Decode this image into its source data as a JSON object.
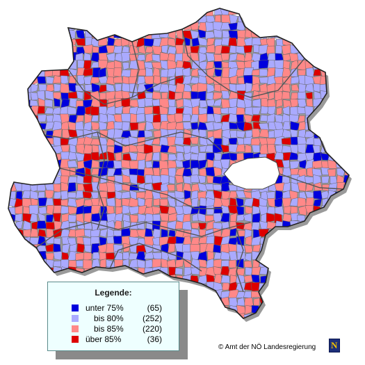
{
  "legend": {
    "title": "Legende:",
    "items": [
      {
        "label": "unter 75%",
        "count": "(65)",
        "color": "#0000dd"
      },
      {
        "label": "bis 80%",
        "count": "(252)",
        "color": "#aaaaff"
      },
      {
        "label": "bis 85%",
        "count": "(220)",
        "color": "#ff8888"
      },
      {
        "label": "über 85%",
        "count": "(36)",
        "color": "#dd0000"
      }
    ]
  },
  "credit": "© Amt der NÖ Landesregierung",
  "logo": {
    "letter": "N",
    "color": "#1d2f7a",
    "accent": "#f2c200"
  },
  "map": {
    "outline_color": "#222222",
    "border_color": "#555555",
    "lake_color": "#ffffff"
  }
}
